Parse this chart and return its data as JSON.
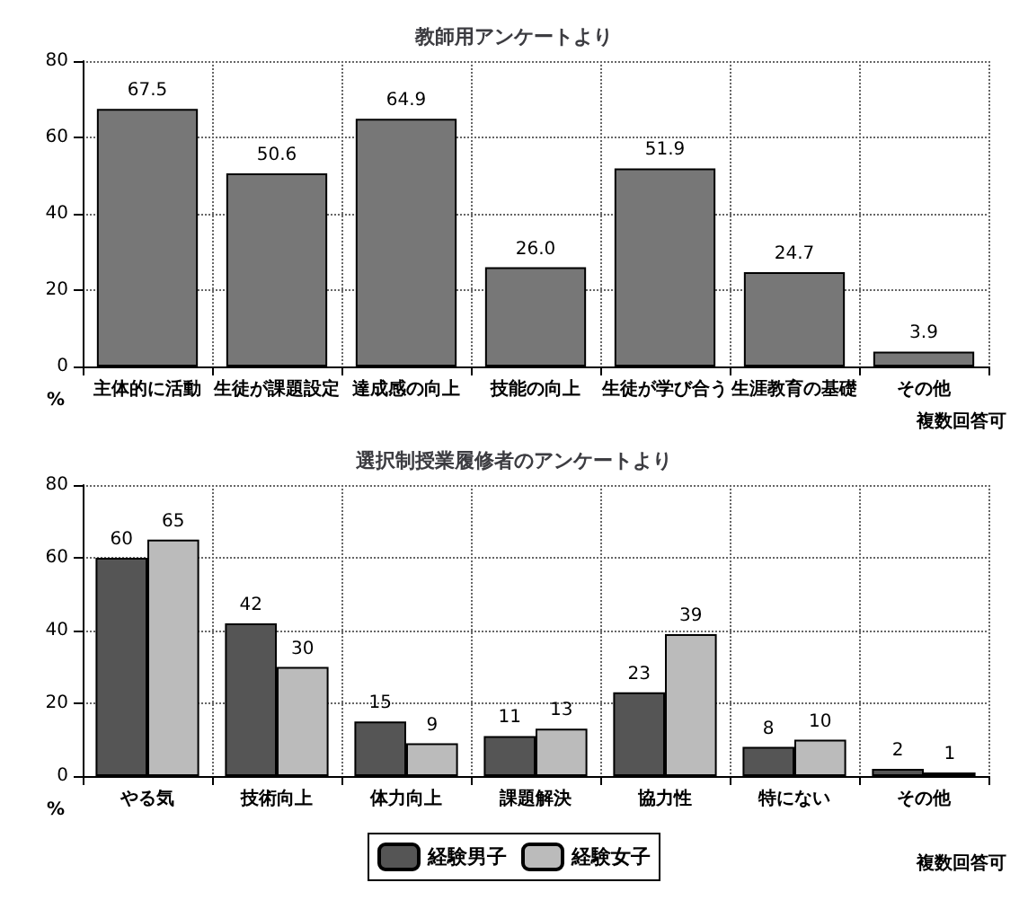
{
  "chart_data": [
    {
      "type": "bar",
      "title": "教師用アンケートより",
      "ylabel": "%",
      "categories": [
        "主体的に活動",
        "生徒が課題設定",
        "達成感の向上",
        "技能の向上",
        "生徒が学び合う",
        "生涯教育の基礎",
        "その他"
      ],
      "values": [
        67.5,
        50.6,
        64.9,
        26.0,
        51.9,
        24.7,
        3.9
      ],
      "value_labels": [
        "67.5",
        "50.6",
        "64.9",
        "26.0",
        "51.9",
        "24.7",
        "3.9"
      ],
      "color": "#777777",
      "ylim": [
        0,
        80
      ],
      "yticks": [
        0,
        20,
        40,
        60,
        80
      ],
      "grid": true,
      "annotations": [
        "複数回答可"
      ]
    },
    {
      "type": "bar",
      "title": "選択制授業履修者のアンケートより",
      "ylabel": "%",
      "categories": [
        "やる気",
        "技術向上",
        "体力向上",
        "課題解決",
        "協力性",
        "特にない",
        "その他"
      ],
      "series": [
        {
          "name": "経験男子",
          "color": "#555555",
          "values": [
            60,
            42,
            15,
            11,
            23,
            8,
            2
          ]
        },
        {
          "name": "経験女子",
          "color": "#bbbbbb",
          "values": [
            65,
            30,
            9,
            13,
            39,
            10,
            1
          ]
        }
      ],
      "ylim": [
        0,
        80
      ],
      "yticks": [
        0,
        20,
        40,
        60,
        80
      ],
      "grid": true,
      "legend": "bottom",
      "data_labels": true,
      "annotations": [
        "複数回答可"
      ]
    }
  ]
}
